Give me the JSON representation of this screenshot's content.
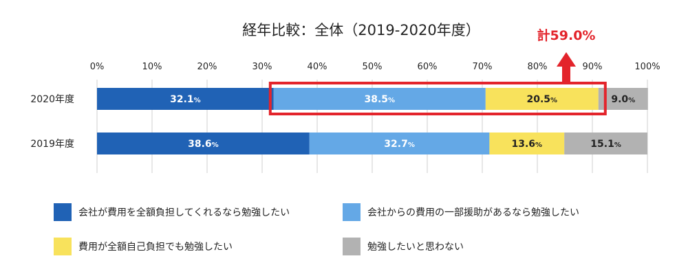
{
  "chart_data": {
    "type": "bar",
    "orientation": "horizontal",
    "stacked": true,
    "title": "経年比較：全体（2019-2020年度）",
    "categories": [
      "2020年度",
      "2019年度"
    ],
    "x_ticks": [
      "0%",
      "10%",
      "20%",
      "30%",
      "40%",
      "50%",
      "60%",
      "70%",
      "80%",
      "90%",
      "100%"
    ],
    "xlim": [
      0,
      100
    ],
    "grid": true,
    "legend_position": "bottom",
    "series": [
      {
        "name": "会社が費用を全額負担してくれるなら勉強したい",
        "color": "#2062b5",
        "label_color": "#ffffff",
        "values": [
          32.1,
          38.6
        ],
        "labels": [
          "32.1",
          "38.6"
        ]
      },
      {
        "name": "会社からの費用の一部援助があるなら勉強したい",
        "color": "#64a8e6",
        "label_color": "#ffffff",
        "values": [
          38.5,
          32.7
        ],
        "labels": [
          "38.5",
          "32.7"
        ]
      },
      {
        "name": "費用が全額自己負担でも勉強したい",
        "color": "#f8e25c",
        "label_color": "#222222",
        "values": [
          20.5,
          13.6
        ],
        "labels": [
          "20.5",
          "13.6"
        ]
      },
      {
        "name": "勉強したいと思わない",
        "color": "#b2b2b2",
        "label_color": "#222222",
        "values": [
          9.0,
          15.1
        ],
        "labels": [
          "9.0",
          "15.1"
        ]
      }
    ],
    "percent_suffix": "%",
    "annotation": {
      "text": "計59.0%",
      "color": "#e3242b",
      "category": "2020年度",
      "from_series": 1,
      "to_series": 2,
      "total": 59.0
    }
  }
}
